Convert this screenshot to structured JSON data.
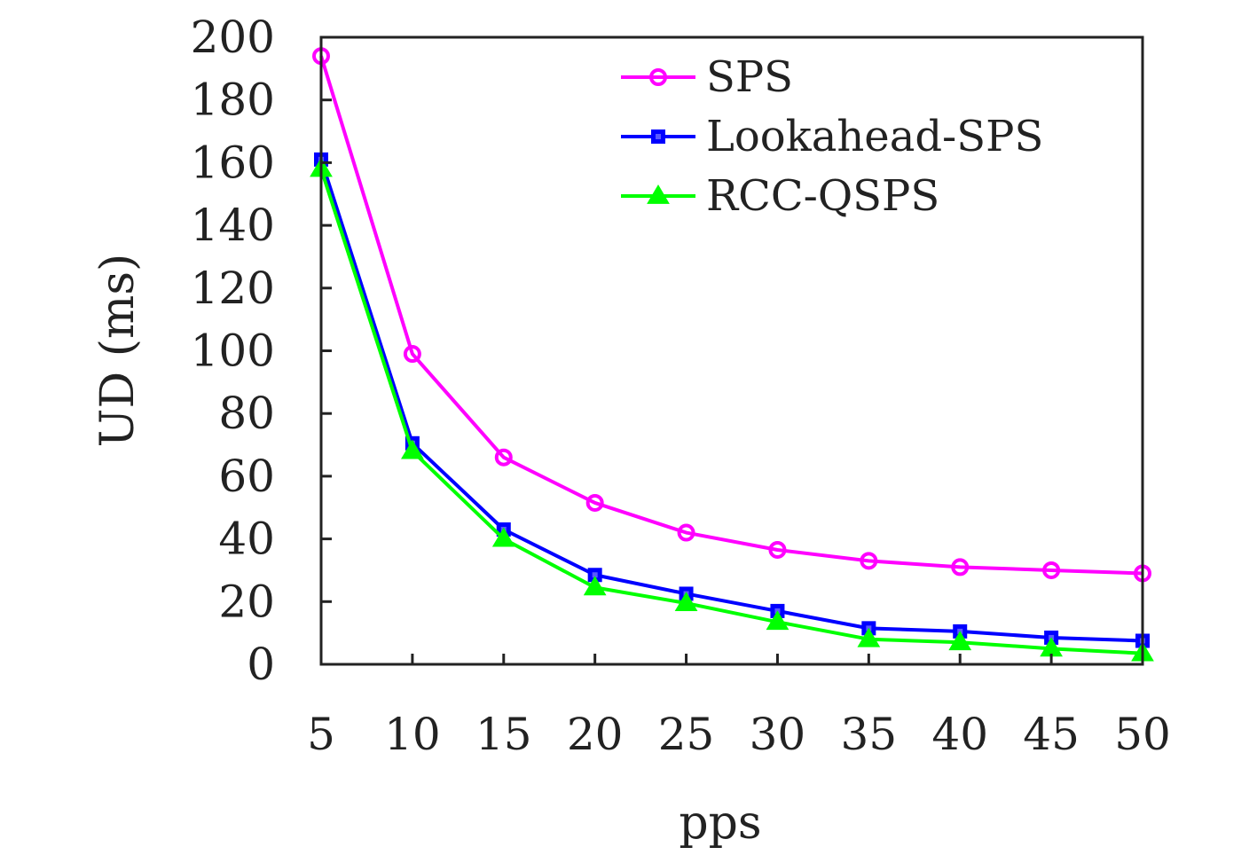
{
  "chart_data": {
    "type": "line",
    "title": "",
    "xlabel": "pps",
    "ylabel": "UD (ms)",
    "x": [
      5,
      10,
      15,
      20,
      25,
      30,
      35,
      40,
      45,
      50
    ],
    "xticks": [
      "5",
      "10",
      "15",
      "20",
      "25",
      "30",
      "35",
      "40",
      "45",
      "50"
    ],
    "yticks": [
      "0",
      "20",
      "40",
      "60",
      "80",
      "100",
      "120",
      "140",
      "160",
      "180",
      "200"
    ],
    "ylim": [
      0,
      200
    ],
    "grid": false,
    "legend_position": "top-right",
    "series": [
      {
        "name": "SPS",
        "color": "#ff00ff",
        "marker": "circle",
        "values": [
          194,
          99,
          66,
          51.5,
          42,
          36.5,
          33,
          31,
          30,
          29
        ]
      },
      {
        "name": "Lookahead-SPS",
        "color": "#0000ff",
        "marker": "square",
        "values": [
          161,
          70.5,
          43,
          28.5,
          22.5,
          17,
          11.5,
          10.5,
          8.5,
          7.5
        ]
      },
      {
        "name": "RCC-QSPS",
        "color": "#00ff00",
        "marker": "triangle",
        "values": [
          158,
          68,
          40,
          24.5,
          19.5,
          13.5,
          8,
          7,
          5,
          3.5
        ]
      }
    ]
  }
}
